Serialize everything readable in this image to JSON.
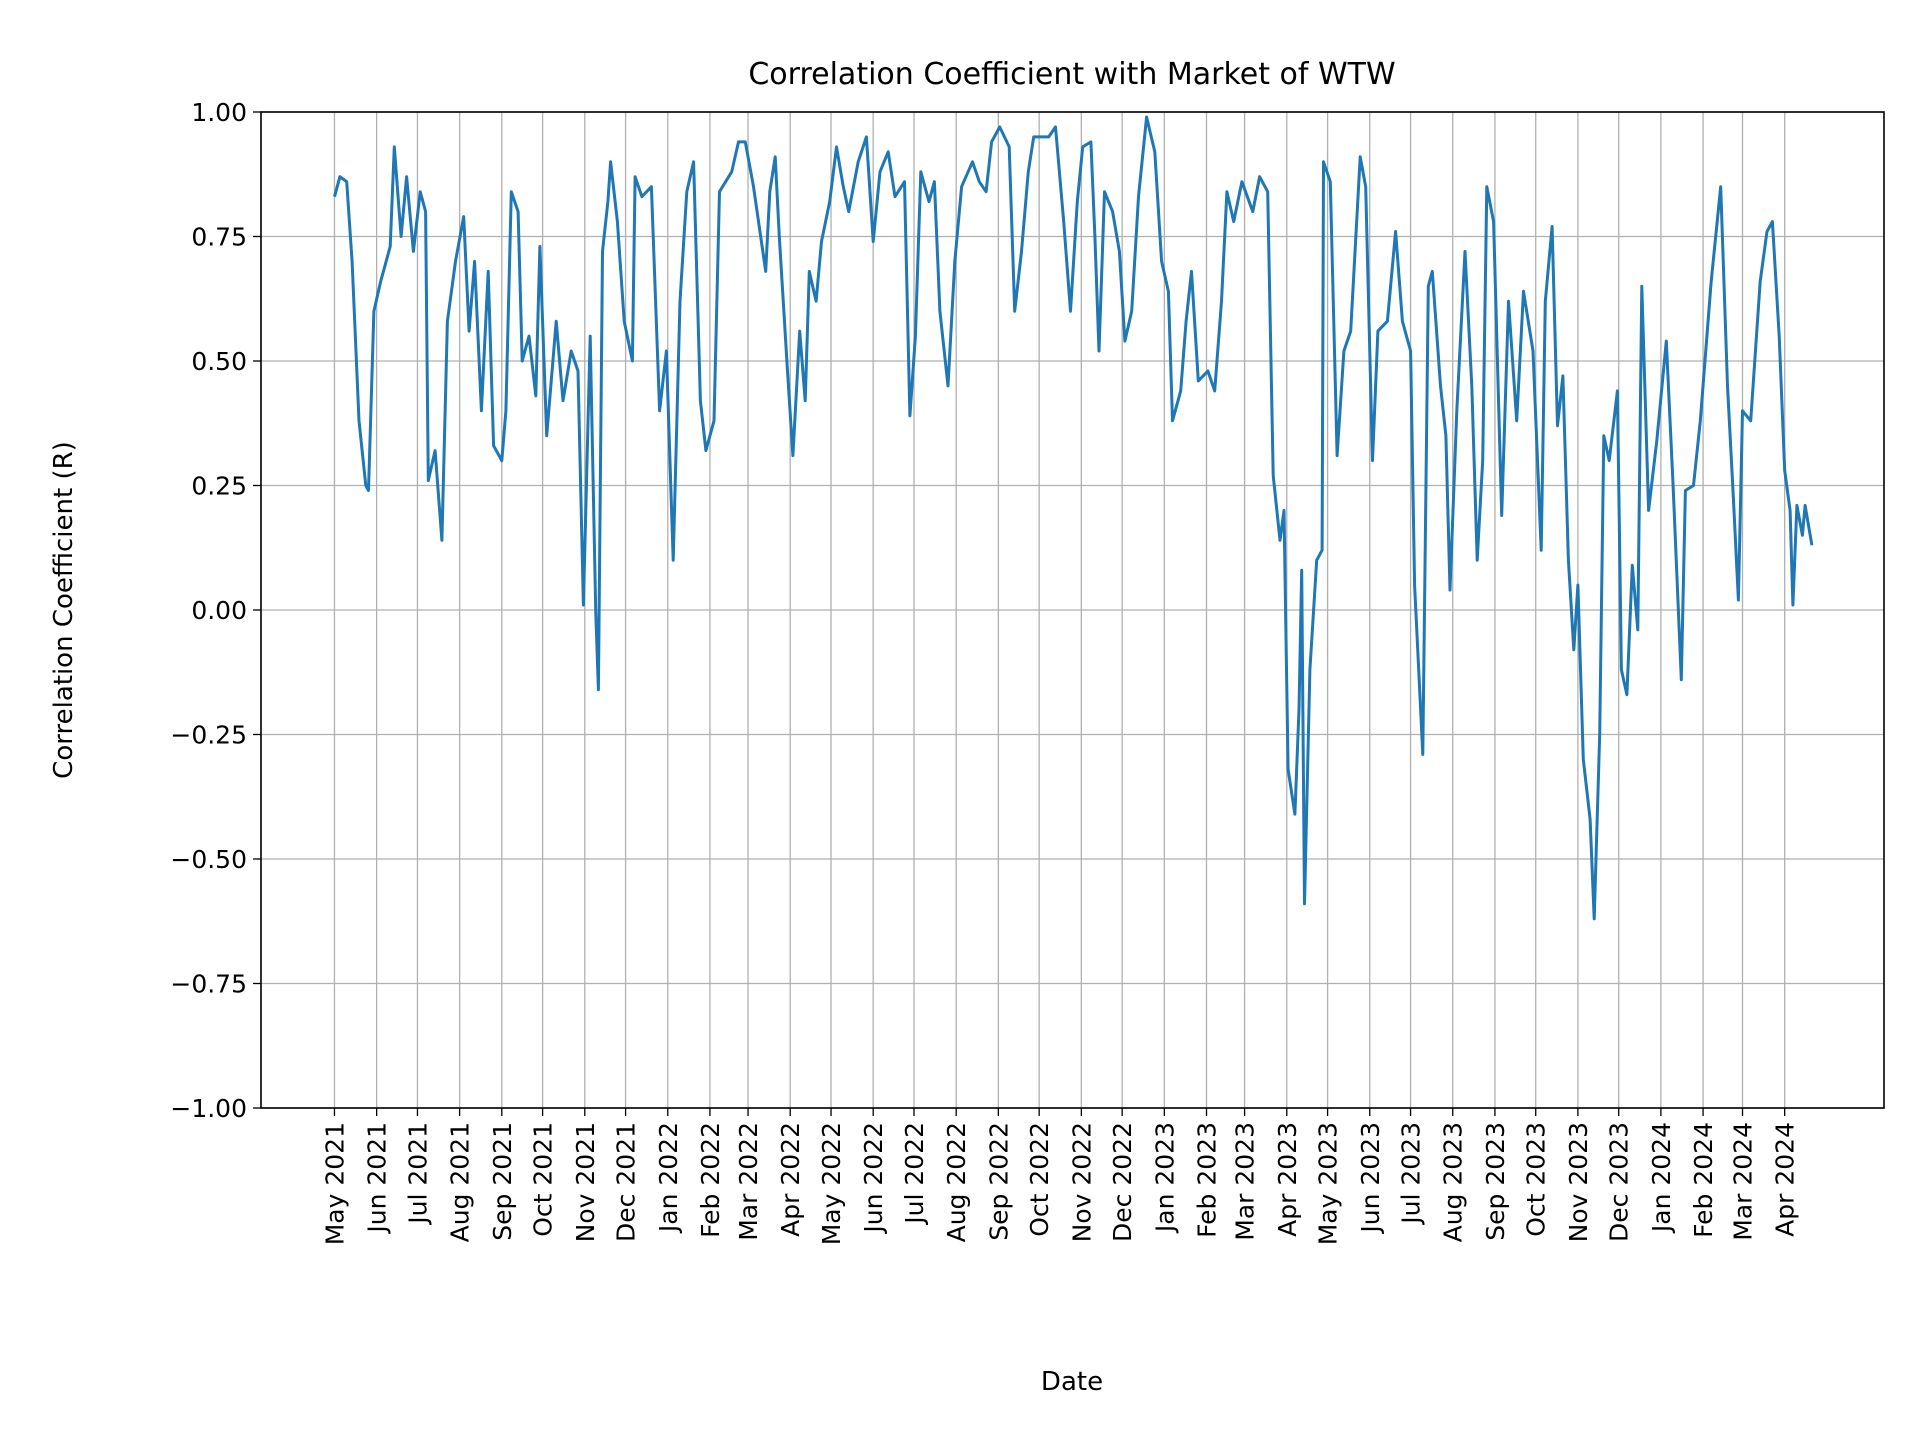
{
  "chart_data": {
    "type": "line",
    "title": "Correlation Coefficient with Market of WTW",
    "xlabel": "Date",
    "ylabel": "Correlation Coefficient (R)",
    "ylim": [
      -1.0,
      1.0
    ],
    "xlim": [
      "2021-03-08",
      "2024-06-13"
    ],
    "grid": true,
    "line_color": "#1f77b4",
    "yticks": [
      -1.0,
      -0.75,
      -0.5,
      -0.25,
      0.0,
      0.25,
      0.5,
      0.75,
      1.0
    ],
    "ytick_labels": [
      "−1.00",
      "−0.75",
      "−0.50",
      "−0.25",
      "0.00",
      "0.25",
      "0.50",
      "0.75",
      "1.00"
    ],
    "xticks": [
      "2021-05-01",
      "2021-06-01",
      "2021-07-01",
      "2021-08-01",
      "2021-09-01",
      "2021-10-01",
      "2021-11-01",
      "2021-12-01",
      "2022-01-01",
      "2022-02-01",
      "2022-03-01",
      "2022-04-01",
      "2022-05-01",
      "2022-06-01",
      "2022-07-01",
      "2022-08-01",
      "2022-09-01",
      "2022-10-01",
      "2022-11-01",
      "2022-12-01",
      "2023-01-01",
      "2023-02-01",
      "2023-03-01",
      "2023-04-01",
      "2023-05-01",
      "2023-06-01",
      "2023-07-01",
      "2023-08-01",
      "2023-09-01",
      "2023-10-01",
      "2023-11-01",
      "2023-12-01",
      "2024-01-01",
      "2024-02-01",
      "2024-03-01",
      "2024-04-01"
    ],
    "xtick_labels": [
      "May 2021",
      "Jun 2021",
      "Jul 2021",
      "Aug 2021",
      "Sep 2021",
      "Oct 2021",
      "Nov 2021",
      "Dec 2021",
      "Jan 2022",
      "Feb 2022",
      "Mar 2022",
      "Apr 2022",
      "May 2022",
      "Jun 2022",
      "Jul 2022",
      "Aug 2022",
      "Sep 2022",
      "Oct 2022",
      "Nov 2022",
      "Dec 2022",
      "Jan 2023",
      "Feb 2023",
      "Mar 2023",
      "Apr 2023",
      "May 2023",
      "Jun 2023",
      "Jul 2023",
      "Aug 2023",
      "Sep 2023",
      "Oct 2023",
      "Nov 2023",
      "Dec 2023",
      "Jan 2024",
      "Feb 2024",
      "Mar 2024",
      "Apr 2024"
    ],
    "series": [
      {
        "points": [
          [
            "2021-05-01",
            0.83
          ],
          [
            "2021-05-05",
            0.87
          ],
          [
            "2021-05-10",
            0.86
          ],
          [
            "2021-05-14",
            0.7
          ],
          [
            "2021-05-19",
            0.38
          ],
          [
            "2021-05-24",
            0.25
          ],
          [
            "2021-05-26",
            0.24
          ],
          [
            "2021-05-30",
            0.6
          ],
          [
            "2021-06-04",
            0.66
          ],
          [
            "2021-06-11",
            0.73
          ],
          [
            "2021-06-14",
            0.93
          ],
          [
            "2021-06-19",
            0.75
          ],
          [
            "2021-06-23",
            0.87
          ],
          [
            "2021-06-28",
            0.72
          ],
          [
            "2021-07-03",
            0.84
          ],
          [
            "2021-07-07",
            0.8
          ],
          [
            "2021-07-09",
            0.26
          ],
          [
            "2021-07-14",
            0.32
          ],
          [
            "2021-07-19",
            0.14
          ],
          [
            "2021-07-23",
            0.58
          ],
          [
            "2021-07-29",
            0.7
          ],
          [
            "2021-08-04",
            0.79
          ],
          [
            "2021-08-08",
            0.56
          ],
          [
            "2021-08-12",
            0.7
          ],
          [
            "2021-08-17",
            0.4
          ],
          [
            "2021-08-22",
            0.68
          ],
          [
            "2021-08-26",
            0.33
          ],
          [
            "2021-09-01",
            0.3
          ],
          [
            "2021-09-04",
            0.4
          ],
          [
            "2021-09-08",
            0.84
          ],
          [
            "2021-09-13",
            0.8
          ],
          [
            "2021-09-16",
            0.5
          ],
          [
            "2021-09-21",
            0.55
          ],
          [
            "2021-09-26",
            0.43
          ],
          [
            "2021-09-29",
            0.73
          ],
          [
            "2021-10-04",
            0.35
          ],
          [
            "2021-10-11",
            0.58
          ],
          [
            "2021-10-16",
            0.42
          ],
          [
            "2021-10-22",
            0.52
          ],
          [
            "2021-10-27",
            0.48
          ],
          [
            "2021-10-31",
            0.01
          ],
          [
            "2021-11-05",
            0.55
          ],
          [
            "2021-11-09",
            0.0
          ],
          [
            "2021-11-11",
            -0.16
          ],
          [
            "2021-11-14",
            0.72
          ],
          [
            "2021-11-18",
            0.82
          ],
          [
            "2021-11-20",
            0.9
          ],
          [
            "2021-11-25",
            0.78
          ],
          [
            "2021-11-30",
            0.58
          ],
          [
            "2021-12-06",
            0.5
          ],
          [
            "2021-12-08",
            0.87
          ],
          [
            "2021-12-13",
            0.83
          ],
          [
            "2021-12-20",
            0.85
          ],
          [
            "2021-12-26",
            0.4
          ],
          [
            "2021-12-31",
            0.52
          ],
          [
            "2022-01-05",
            0.1
          ],
          [
            "2022-01-10",
            0.62
          ],
          [
            "2022-01-15",
            0.84
          ],
          [
            "2022-01-20",
            0.9
          ],
          [
            "2022-01-25",
            0.42
          ],
          [
            "2022-01-29",
            0.32
          ],
          [
            "2022-02-04",
            0.38
          ],
          [
            "2022-02-08",
            0.84
          ],
          [
            "2022-02-17",
            0.88
          ],
          [
            "2022-02-22",
            0.94
          ],
          [
            "2022-02-27",
            0.94
          ],
          [
            "2022-03-05",
            0.85
          ],
          [
            "2022-03-14",
            0.68
          ],
          [
            "2022-03-17",
            0.84
          ],
          [
            "2022-03-21",
            0.91
          ],
          [
            "2022-03-24",
            0.75
          ],
          [
            "2022-03-30",
            0.48
          ],
          [
            "2022-04-03",
            0.31
          ],
          [
            "2022-04-08",
            0.56
          ],
          [
            "2022-04-12",
            0.42
          ],
          [
            "2022-04-15",
            0.68
          ],
          [
            "2022-04-20",
            0.62
          ],
          [
            "2022-04-24",
            0.74
          ],
          [
            "2022-04-30",
            0.82
          ],
          [
            "2022-05-05",
            0.93
          ],
          [
            "2022-05-10",
            0.85
          ],
          [
            "2022-05-14",
            0.8
          ],
          [
            "2022-05-21",
            0.9
          ],
          [
            "2022-05-27",
            0.95
          ],
          [
            "2022-06-01",
            0.74
          ],
          [
            "2022-06-06",
            0.88
          ],
          [
            "2022-06-12",
            0.92
          ],
          [
            "2022-06-17",
            0.83
          ],
          [
            "2022-06-24",
            0.86
          ],
          [
            "2022-06-28",
            0.39
          ],
          [
            "2022-07-02",
            0.55
          ],
          [
            "2022-07-06",
            0.88
          ],
          [
            "2022-07-12",
            0.82
          ],
          [
            "2022-07-16",
            0.86
          ],
          [
            "2022-07-20",
            0.6
          ],
          [
            "2022-07-26",
            0.45
          ],
          [
            "2022-07-31",
            0.7
          ],
          [
            "2022-08-05",
            0.85
          ],
          [
            "2022-08-13",
            0.9
          ],
          [
            "2022-08-18",
            0.86
          ],
          [
            "2022-08-23",
            0.84
          ],
          [
            "2022-08-27",
            0.94
          ],
          [
            "2022-09-02",
            0.97
          ],
          [
            "2022-09-09",
            0.93
          ],
          [
            "2022-09-13",
            0.6
          ],
          [
            "2022-09-18",
            0.72
          ],
          [
            "2022-09-23",
            0.88
          ],
          [
            "2022-09-27",
            0.95
          ],
          [
            "2022-10-08",
            0.95
          ],
          [
            "2022-10-13",
            0.97
          ],
          [
            "2022-10-19",
            0.78
          ],
          [
            "2022-10-24",
            0.6
          ],
          [
            "2022-10-29",
            0.82
          ],
          [
            "2022-11-02",
            0.93
          ],
          [
            "2022-11-08",
            0.94
          ],
          [
            "2022-11-11",
            0.75
          ],
          [
            "2022-11-14",
            0.52
          ],
          [
            "2022-11-18",
            0.84
          ],
          [
            "2022-11-24",
            0.8
          ],
          [
            "2022-11-29",
            0.72
          ],
          [
            "2022-12-03",
            0.54
          ],
          [
            "2022-12-08",
            0.6
          ],
          [
            "2022-12-13",
            0.83
          ],
          [
            "2022-12-19",
            0.99
          ],
          [
            "2022-12-25",
            0.92
          ],
          [
            "2022-12-30",
            0.7
          ],
          [
            "2023-01-04",
            0.64
          ],
          [
            "2023-01-07",
            0.38
          ],
          [
            "2023-01-13",
            0.44
          ],
          [
            "2023-01-17",
            0.58
          ],
          [
            "2023-01-21",
            0.68
          ],
          [
            "2023-01-26",
            0.46
          ],
          [
            "2023-02-02",
            0.48
          ],
          [
            "2023-02-07",
            0.44
          ],
          [
            "2023-02-12",
            0.62
          ],
          [
            "2023-02-16",
            0.84
          ],
          [
            "2023-02-21",
            0.78
          ],
          [
            "2023-02-27",
            0.86
          ],
          [
            "2023-03-07",
            0.8
          ],
          [
            "2023-03-12",
            0.87
          ],
          [
            "2023-03-18",
            0.84
          ],
          [
            "2023-03-22",
            0.27
          ],
          [
            "2023-03-27",
            0.14
          ],
          [
            "2023-03-30",
            0.2
          ],
          [
            "2023-04-02",
            -0.32
          ],
          [
            "2023-04-07",
            -0.41
          ],
          [
            "2023-04-10",
            -0.2
          ],
          [
            "2023-04-12",
            0.08
          ],
          [
            "2023-04-14",
            -0.59
          ],
          [
            "2023-04-18",
            -0.12
          ],
          [
            "2023-04-23",
            0.1
          ],
          [
            "2023-04-27",
            0.12
          ],
          [
            "2023-04-28",
            0.9
          ],
          [
            "2023-05-03",
            0.86
          ],
          [
            "2023-05-08",
            0.31
          ],
          [
            "2023-05-13",
            0.52
          ],
          [
            "2023-05-18",
            0.56
          ],
          [
            "2023-05-25",
            0.91
          ],
          [
            "2023-05-29",
            0.85
          ],
          [
            "2023-06-03",
            0.3
          ],
          [
            "2023-06-07",
            0.56
          ],
          [
            "2023-06-14",
            0.58
          ],
          [
            "2023-06-20",
            0.76
          ],
          [
            "2023-06-25",
            0.58
          ],
          [
            "2023-07-01",
            0.52
          ],
          [
            "2023-07-04",
            0.05
          ],
          [
            "2023-07-10",
            -0.29
          ],
          [
            "2023-07-14",
            0.65
          ],
          [
            "2023-07-17",
            0.68
          ],
          [
            "2023-07-23",
            0.45
          ],
          [
            "2023-07-27",
            0.35
          ],
          [
            "2023-07-30",
            0.04
          ],
          [
            "2023-08-04",
            0.4
          ],
          [
            "2023-08-10",
            0.72
          ],
          [
            "2023-08-15",
            0.45
          ],
          [
            "2023-08-19",
            0.1
          ],
          [
            "2023-08-23",
            0.3
          ],
          [
            "2023-08-26",
            0.85
          ],
          [
            "2023-08-31",
            0.78
          ],
          [
            "2023-09-06",
            0.19
          ],
          [
            "2023-09-11",
            0.62
          ],
          [
            "2023-09-17",
            0.38
          ],
          [
            "2023-09-22",
            0.64
          ],
          [
            "2023-09-29",
            0.52
          ],
          [
            "2023-10-05",
            0.12
          ],
          [
            "2023-10-08",
            0.62
          ],
          [
            "2023-10-13",
            0.77
          ],
          [
            "2023-10-17",
            0.37
          ],
          [
            "2023-10-21",
            0.47
          ],
          [
            "2023-10-25",
            0.1
          ],
          [
            "2023-10-29",
            -0.08
          ],
          [
            "2023-11-01",
            0.05
          ],
          [
            "2023-11-05",
            -0.3
          ],
          [
            "2023-11-10",
            -0.42
          ],
          [
            "2023-11-13",
            -0.62
          ],
          [
            "2023-11-17",
            -0.25
          ],
          [
            "2023-11-20",
            0.35
          ],
          [
            "2023-11-24",
            0.3
          ],
          [
            "2023-11-30",
            0.44
          ],
          [
            "2023-12-03",
            -0.12
          ],
          [
            "2023-12-07",
            -0.17
          ],
          [
            "2023-12-11",
            0.09
          ],
          [
            "2023-12-15",
            -0.04
          ],
          [
            "2023-12-18",
            0.65
          ],
          [
            "2023-12-23",
            0.2
          ],
          [
            "2023-12-29",
            0.34
          ],
          [
            "2024-01-05",
            0.54
          ],
          [
            "2024-01-10",
            0.25
          ],
          [
            "2024-01-16",
            -0.14
          ],
          [
            "2024-01-19",
            0.24
          ],
          [
            "2024-01-25",
            0.25
          ],
          [
            "2024-01-30",
            0.38
          ],
          [
            "2024-02-07",
            0.66
          ],
          [
            "2024-02-14",
            0.85
          ],
          [
            "2024-02-19",
            0.45
          ],
          [
            "2024-02-23",
            0.24
          ],
          [
            "2024-02-27",
            0.02
          ],
          [
            "2024-03-01",
            0.4
          ],
          [
            "2024-03-07",
            0.38
          ],
          [
            "2024-03-14",
            0.66
          ],
          [
            "2024-03-19",
            0.76
          ],
          [
            "2024-03-23",
            0.78
          ],
          [
            "2024-03-28",
            0.55
          ],
          [
            "2024-04-01",
            0.28
          ],
          [
            "2024-04-05",
            0.2
          ],
          [
            "2024-04-07",
            0.01
          ],
          [
            "2024-04-10",
            0.21
          ],
          [
            "2024-04-14",
            0.15
          ],
          [
            "2024-04-16",
            0.21
          ],
          [
            "2024-04-21",
            0.13
          ]
        ]
      }
    ]
  }
}
